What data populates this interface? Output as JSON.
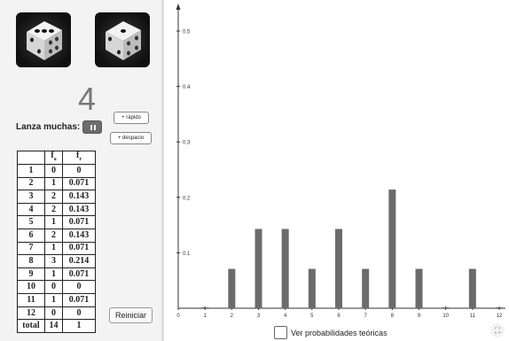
{
  "dice": [
    {
      "name": "die-left",
      "face": 3
    },
    {
      "name": "die-right",
      "face": 1
    }
  ],
  "controls": {
    "current_sum": "4",
    "lanza_label": "Lanza muchas:",
    "faster_label": "+ rápido",
    "slower_label": "+ despacio",
    "reset_label": "Reiniciar",
    "theory_label": "Ver probabilidades teóricas",
    "theory_checked": false
  },
  "table": {
    "headers": [
      "",
      "f",
      "f"
    ],
    "header_subscripts": [
      "",
      "a",
      "r"
    ],
    "rows": [
      [
        "1",
        "0",
        "0"
      ],
      [
        "2",
        "1",
        "0.071"
      ],
      [
        "3",
        "2",
        "0.143"
      ],
      [
        "4",
        "2",
        "0.143"
      ],
      [
        "5",
        "1",
        "0.071"
      ],
      [
        "6",
        "2",
        "0.143"
      ],
      [
        "7",
        "1",
        "0.071"
      ],
      [
        "8",
        "3",
        "0.214"
      ],
      [
        "9",
        "1",
        "0.071"
      ],
      [
        "10",
        "0",
        "0"
      ],
      [
        "11",
        "1",
        "0.071"
      ],
      [
        "12",
        "0",
        "0"
      ],
      [
        "total",
        "14",
        "1"
      ]
    ]
  },
  "chart_data": {
    "type": "bar",
    "categories": [
      "1",
      "2",
      "3",
      "4",
      "5",
      "6",
      "7",
      "8",
      "9",
      "10",
      "11",
      "12"
    ],
    "values": [
      0,
      0.071,
      0.143,
      0.143,
      0.071,
      0.143,
      0.071,
      0.214,
      0.071,
      0,
      0.071,
      0
    ],
    "x_ticks": [
      "0",
      "1",
      "2",
      "3",
      "4",
      "5",
      "6",
      "7",
      "8",
      "9",
      "10",
      "11",
      "12"
    ],
    "y_ticks": [
      "0.1",
      "0.2",
      "0.3",
      "0.4",
      "0.5"
    ],
    "xlim": [
      0,
      12
    ],
    "ylim": [
      0,
      0.54
    ],
    "bar_color": "#6b6b6b",
    "grid": false
  },
  "icons": {
    "fullscreen": "⛶"
  }
}
